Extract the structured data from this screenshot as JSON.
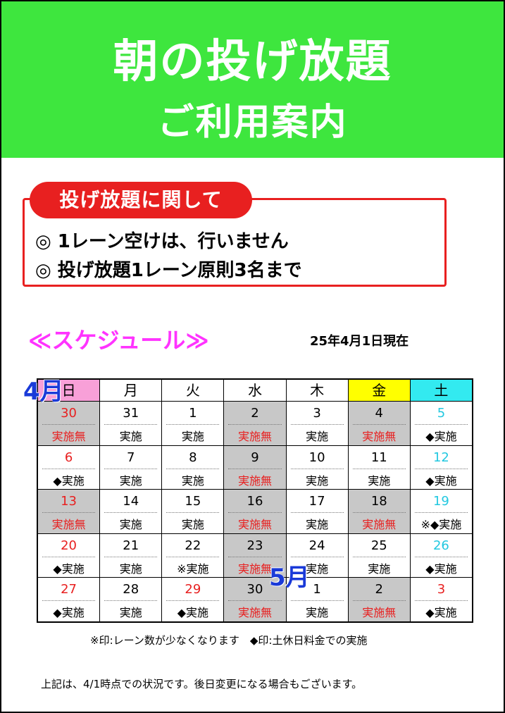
{
  "banner": {
    "title_line1": "朝の投げ放題",
    "title_line2": "ご利用案内"
  },
  "notice": {
    "heading": "投げ放題に関して",
    "lines": [
      "◎ 1レーン空けは、行いません",
      "◎ 投げ放題1レーン原則3名まで"
    ]
  },
  "schedule": {
    "heading": "≪スケジュール≫",
    "as_of": "25年4月1日現在",
    "month_labels": [
      "4月",
      "5月"
    ],
    "weekdays": [
      "日",
      "月",
      "火",
      "水",
      "木",
      "金",
      "土"
    ],
    "weeks": [
      [
        {
          "day": "30",
          "status": "実施無",
          "gray": true,
          "day_color": "red",
          "status_color": "red"
        },
        {
          "day": "31",
          "status": "実施",
          "gray": false,
          "day_color": "black",
          "status_color": "black"
        },
        {
          "day": "1",
          "status": "実施",
          "gray": false,
          "day_color": "black",
          "status_color": "black"
        },
        {
          "day": "2",
          "status": "実施無",
          "gray": true,
          "day_color": "black",
          "status_color": "red"
        },
        {
          "day": "3",
          "status": "実施",
          "gray": false,
          "day_color": "black",
          "status_color": "black"
        },
        {
          "day": "4",
          "status": "実施無",
          "gray": true,
          "day_color": "black",
          "status_color": "red"
        },
        {
          "day": "5",
          "status": "◆実施",
          "gray": false,
          "day_color": "cyan",
          "status_color": "black"
        }
      ],
      [
        {
          "day": "6",
          "status": "◆実施",
          "gray": false,
          "day_color": "red",
          "status_color": "black"
        },
        {
          "day": "7",
          "status": "実施",
          "gray": false,
          "day_color": "black",
          "status_color": "black"
        },
        {
          "day": "8",
          "status": "実施",
          "gray": false,
          "day_color": "black",
          "status_color": "black"
        },
        {
          "day": "9",
          "status": "実施無",
          "gray": true,
          "day_color": "black",
          "status_color": "red"
        },
        {
          "day": "10",
          "status": "実施",
          "gray": false,
          "day_color": "black",
          "status_color": "black"
        },
        {
          "day": "11",
          "status": "実施",
          "gray": false,
          "day_color": "black",
          "status_color": "black"
        },
        {
          "day": "12",
          "status": "◆実施",
          "gray": false,
          "day_color": "cyan",
          "status_color": "black"
        }
      ],
      [
        {
          "day": "13",
          "status": "実施無",
          "gray": true,
          "day_color": "red",
          "status_color": "red"
        },
        {
          "day": "14",
          "status": "実施",
          "gray": false,
          "day_color": "black",
          "status_color": "black"
        },
        {
          "day": "15",
          "status": "実施",
          "gray": false,
          "day_color": "black",
          "status_color": "black"
        },
        {
          "day": "16",
          "status": "実施無",
          "gray": true,
          "day_color": "black",
          "status_color": "red"
        },
        {
          "day": "17",
          "status": "実施",
          "gray": false,
          "day_color": "black",
          "status_color": "black"
        },
        {
          "day": "18",
          "status": "実施無",
          "gray": true,
          "day_color": "black",
          "status_color": "red"
        },
        {
          "day": "19",
          "status": "※◆実施",
          "gray": false,
          "day_color": "cyan",
          "status_color": "black"
        }
      ],
      [
        {
          "day": "20",
          "status": "◆実施",
          "gray": false,
          "day_color": "red",
          "status_color": "black"
        },
        {
          "day": "21",
          "status": "実施",
          "gray": false,
          "day_color": "black",
          "status_color": "black"
        },
        {
          "day": "22",
          "status": "※実施",
          "gray": false,
          "day_color": "black",
          "status_color": "black"
        },
        {
          "day": "23",
          "status": "実施無",
          "gray": true,
          "day_color": "black",
          "status_color": "red"
        },
        {
          "day": "24",
          "status": "実施",
          "gray": false,
          "day_color": "black",
          "status_color": "black"
        },
        {
          "day": "25",
          "status": "実施",
          "gray": false,
          "day_color": "black",
          "status_color": "black"
        },
        {
          "day": "26",
          "status": "◆実施",
          "gray": false,
          "day_color": "cyan",
          "status_color": "black"
        }
      ],
      [
        {
          "day": "27",
          "status": "◆実施",
          "gray": false,
          "day_color": "red",
          "status_color": "black"
        },
        {
          "day": "28",
          "status": "実施",
          "gray": false,
          "day_color": "black",
          "status_color": "black"
        },
        {
          "day": "29",
          "status": "◆実施",
          "gray": false,
          "day_color": "red",
          "status_color": "black"
        },
        {
          "day": "30",
          "status": "実施無",
          "gray": true,
          "day_color": "black",
          "status_color": "red"
        },
        {
          "day": "1",
          "status": "実施",
          "gray": false,
          "day_color": "black",
          "status_color": "black"
        },
        {
          "day": "2",
          "status": "実施無",
          "gray": true,
          "day_color": "black",
          "status_color": "red"
        },
        {
          "day": "3",
          "status": "◆実施",
          "gray": false,
          "day_color": "red",
          "status_color": "black"
        }
      ]
    ]
  },
  "legend": "※印:レーン数が少なくなります　◆印:土休日料金での実施",
  "footer_note": "上記は、4/1時点での状況です。後日変更になる場合もございます。"
}
